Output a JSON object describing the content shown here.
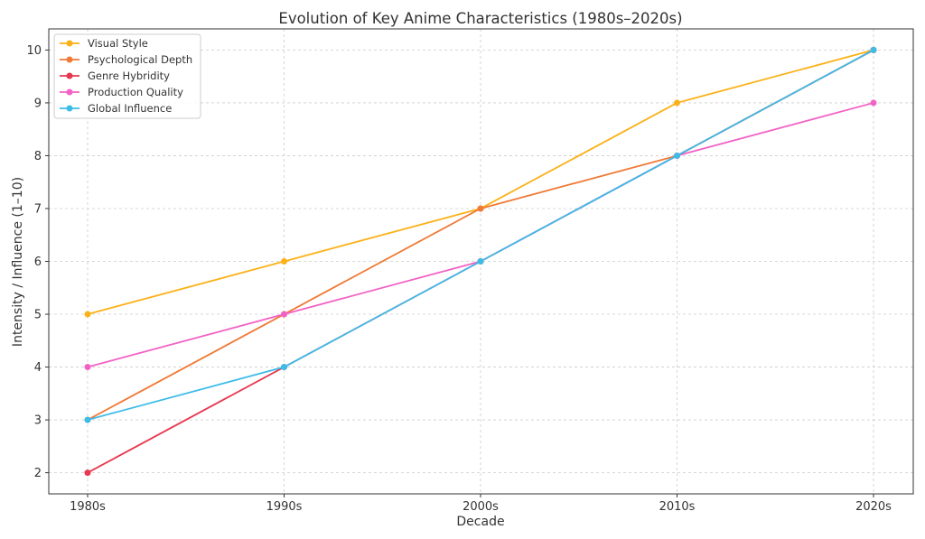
{
  "chart_data": {
    "type": "line",
    "title": "Evolution of Key Anime Characteristics (1980s–2020s)",
    "xlabel": "Decade",
    "ylabel": "Intensity / Influence (1–10)",
    "categories": [
      "1980s",
      "1990s",
      "2000s",
      "2010s",
      "2020s"
    ],
    "yticks": [
      2,
      3,
      4,
      5,
      6,
      7,
      8,
      9,
      10
    ],
    "ylim": [
      1.6,
      10.4
    ],
    "grid": true,
    "legend_position": "top-left",
    "series": [
      {
        "name": "Visual Style",
        "color": "#fbb117",
        "values": [
          5,
          6,
          7,
          9,
          10
        ]
      },
      {
        "name": "Psychological Depth",
        "color": "#f07a36",
        "values": [
          3,
          5,
          7,
          8,
          10
        ]
      },
      {
        "name": "Genre Hybridity",
        "color": "#e8384f",
        "values": [
          2,
          4,
          6,
          8,
          10
        ]
      },
      {
        "name": "Production Quality",
        "color": "#f262c5",
        "values": [
          4,
          5,
          6,
          8,
          9
        ]
      },
      {
        "name": "Global Influence",
        "color": "#3dbce8",
        "values": [
          3,
          4,
          6,
          8,
          10
        ]
      }
    ]
  }
}
